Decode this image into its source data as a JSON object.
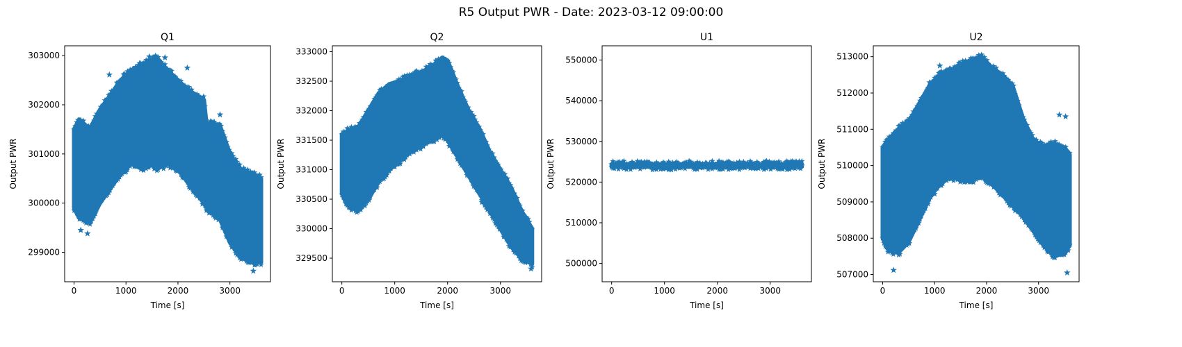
{
  "figure": {
    "title": "R5 Output PWR - Date: 2023-03-12 09:00:00",
    "marker_color": "#1f77b4"
  },
  "chart_data": [
    {
      "type": "scatter",
      "title": "Q1",
      "xlabel": "Time [s]",
      "ylabel": "Output PWR",
      "xlim": [
        -180,
        3780
      ],
      "ylim": [
        298400,
        303200
      ],
      "x_ticks": [
        0,
        1000,
        2000,
        3000
      ],
      "y_ticks": [
        299000,
        300000,
        301000,
        302000,
        303000
      ],
      "envelope": {
        "x": [
          0,
          100,
          300,
          500,
          700,
          900,
          1100,
          1300,
          1450,
          1600,
          1800,
          2000,
          2200,
          2500,
          2550,
          2800,
          3000,
          3200,
          3400,
          3600
        ],
        "upper": [
          301500,
          301700,
          301500,
          301900,
          302200,
          302500,
          302700,
          302800,
          302900,
          302950,
          302700,
          302500,
          302300,
          302100,
          301600,
          301600,
          301000,
          300700,
          300600,
          300500
        ],
        "lower": [
          299900,
          299700,
          299600,
          300000,
          300300,
          300600,
          300800,
          300700,
          300800,
          300700,
          300800,
          300700,
          300400,
          300000,
          299900,
          299700,
          299200,
          298900,
          298800,
          298800
        ]
      },
      "outliers": [
        [
          1450,
          302980
        ],
        [
          1750,
          302960
        ],
        [
          680,
          302610
        ],
        [
          2180,
          302750
        ],
        [
          2810,
          301800
        ],
        [
          130,
          299450
        ],
        [
          260,
          299380
        ],
        [
          3450,
          298620
        ]
      ]
    },
    {
      "type": "scatter",
      "title": "Q2",
      "xlabel": "Time [s]",
      "ylabel": "Output PWR",
      "xlim": [
        -180,
        3780
      ],
      "ylim": [
        329100,
        333100
      ],
      "x_ticks": [
        0,
        1000,
        2000,
        3000
      ],
      "y_ticks": [
        329500,
        330000,
        330500,
        331000,
        331500,
        332000,
        332500,
        333000
      ],
      "envelope": {
        "x": [
          0,
          100,
          300,
          500,
          700,
          900,
          1100,
          1300,
          1500,
          1700,
          1900,
          2000,
          2200,
          2400,
          2600,
          2800,
          3000,
          3200,
          3400,
          3600
        ],
        "upper": [
          331600,
          331650,
          331700,
          332000,
          332300,
          332450,
          332500,
          332600,
          332650,
          332750,
          332900,
          332850,
          332400,
          332000,
          331700,
          331300,
          331000,
          330700,
          330300,
          330000
        ],
        "lower": [
          330600,
          330400,
          330300,
          330500,
          330800,
          331000,
          331150,
          331300,
          331400,
          331500,
          331600,
          331500,
          331200,
          330900,
          330600,
          330300,
          330000,
          329700,
          329500,
          329400
        ]
      },
      "outliers": [
        [
          3470,
          329450
        ],
        [
          3580,
          329320
        ],
        [
          2650,
          330450
        ],
        [
          480,
          331880
        ]
      ]
    },
    {
      "type": "scatter",
      "title": "U1",
      "xlabel": "Time [s]",
      "ylabel": "Output PWR",
      "xlim": [
        -180,
        3780
      ],
      "ylim": [
        495500,
        553500
      ],
      "x_ticks": [
        0,
        1000,
        2000,
        3000
      ],
      "y_ticks": [
        500000,
        510000,
        520000,
        530000,
        540000,
        550000
      ],
      "envelope": {
        "x": [
          0,
          3600
        ],
        "upper": [
          524400,
          524400
        ],
        "lower": [
          523800,
          523800
        ]
      },
      "outliers": []
    },
    {
      "type": "scatter",
      "title": "U2",
      "xlabel": "Time [s]",
      "ylabel": "Output PWR",
      "xlim": [
        -180,
        3780
      ],
      "ylim": [
        506800,
        513300
      ],
      "x_ticks": [
        0,
        1000,
        2000,
        3000
      ],
      "y_ticks": [
        507000,
        508000,
        509000,
        510000,
        511000,
        512000,
        513000
      ],
      "envelope": {
        "x": [
          0,
          100,
          300,
          500,
          700,
          900,
          1100,
          1300,
          1500,
          1700,
          1900,
          2100,
          2300,
          2500,
          2700,
          2900,
          3100,
          3300,
          3500,
          3600
        ],
        "upper": [
          510500,
          510700,
          511000,
          511200,
          511700,
          512200,
          512500,
          512600,
          512800,
          512900,
          513000,
          512700,
          512500,
          512200,
          511300,
          510700,
          510500,
          510600,
          510500,
          510300
        ],
        "lower": [
          508000,
          507700,
          507600,
          507900,
          508500,
          509100,
          509500,
          509700,
          509600,
          509600,
          509700,
          509500,
          509200,
          508900,
          508600,
          508200,
          507800,
          507500,
          507600,
          507800
        ]
      },
      "outliers": [
        [
          210,
          507120
        ],
        [
          3550,
          507050
        ],
        [
          1920,
          513000
        ],
        [
          1100,
          512750
        ],
        [
          3400,
          511400
        ],
        [
          3520,
          511350
        ]
      ]
    }
  ]
}
